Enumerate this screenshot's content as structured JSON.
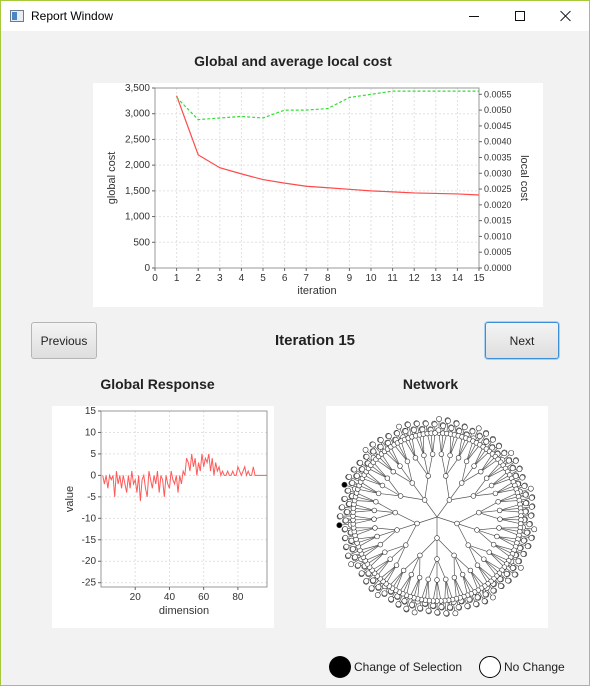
{
  "window": {
    "title": "Report Window",
    "controls": {
      "minimize": "minimize-icon",
      "maximize": "maximize-icon",
      "close": "close-icon"
    }
  },
  "cost_chart": {
    "heading": "Global and average local cost"
  },
  "navigation": {
    "previous_label": "Previous",
    "next_label": "Next",
    "iteration_label": "Iteration 15"
  },
  "response_chart": {
    "heading": "Global Response"
  },
  "network": {
    "heading": "Network",
    "filled_color": "#000000",
    "empty_color": "#ffffff"
  },
  "legend": {
    "change_label": "Change of Selection",
    "no_change_label": "No Change"
  },
  "chart_data": [
    {
      "type": "line",
      "title": "Global and average local cost",
      "xlabel": "iteration",
      "ylabel": "global cost",
      "y2label": "local cost",
      "xlim": [
        0,
        15
      ],
      "ylim": [
        0,
        3500
      ],
      "y2lim": [
        0,
        0.0057
      ],
      "x_ticks": [
        0,
        1,
        2,
        3,
        4,
        5,
        6,
        7,
        8,
        9,
        10,
        11,
        12,
        13,
        14,
        15
      ],
      "y_ticks": [
        "0",
        "500",
        "1,000",
        "1,500",
        "2,000",
        "2,500",
        "3,000",
        "3,500"
      ],
      "y2_ticks": [
        "0.0000",
        "0.0005",
        "0.0010",
        "0.0015",
        "0.0020",
        "0.0025",
        "0.0030",
        "0.0035",
        "0.0040",
        "0.0045",
        "0.0050",
        "0.0055"
      ],
      "grid": true,
      "series": [
        {
          "color": "#ff4a4a",
          "axis": "left",
          "dash": "solid",
          "x": [
            1,
            2,
            3,
            4,
            5,
            6,
            7,
            8,
            9,
            10,
            11,
            12,
            13,
            14,
            15
          ],
          "values": [
            3350,
            2200,
            1950,
            1830,
            1720,
            1650,
            1590,
            1560,
            1530,
            1500,
            1480,
            1460,
            1450,
            1440,
            1420
          ]
        },
        {
          "color": "#33dd33",
          "axis": "right",
          "dash": "dashed",
          "x": [
            1,
            2,
            3,
            4,
            5,
            6,
            7,
            8,
            9,
            10,
            11,
            12,
            13,
            14,
            15
          ],
          "values": [
            0.0054,
            0.0047,
            0.00475,
            0.0048,
            0.00475,
            0.005,
            0.005,
            0.00505,
            0.0054,
            0.0055,
            0.0056,
            0.0056,
            0.0056,
            0.0056,
            0.0056
          ]
        }
      ]
    },
    {
      "type": "line",
      "title": "Global Response",
      "xlabel": "dimension",
      "ylabel": "value",
      "xlim": [
        0,
        97
      ],
      "ylim": [
        -26,
        15
      ],
      "x_ticks": [
        "20",
        "40",
        "60",
        "80"
      ],
      "x_tick_values": [
        20,
        40,
        60,
        80
      ],
      "y_ticks": [
        "15",
        "10",
        "5",
        "0",
        "-5",
        "-10",
        "-15",
        "-20",
        "-25"
      ],
      "y_tick_values": [
        15,
        10,
        5,
        0,
        -5,
        -10,
        -15,
        -20,
        -25
      ],
      "grid": true,
      "series": [
        {
          "color": "#ff5a5a",
          "values": [
            0,
            -2,
            0,
            -3,
            0,
            -1,
            0,
            -5,
            1,
            -2,
            0,
            -3,
            0,
            -2,
            -4,
            0,
            -3,
            1,
            -2,
            -1,
            -4,
            0,
            -6,
            -1,
            0,
            -3,
            -5,
            1,
            -1,
            -3,
            0,
            -2,
            1,
            -4,
            0,
            -1,
            -5,
            0,
            -2,
            -3,
            1,
            -1,
            -2,
            0,
            -4,
            0,
            -2,
            1,
            0,
            4,
            3,
            1,
            5,
            2,
            4,
            0,
            3,
            1,
            5,
            2,
            4,
            3,
            5,
            1,
            4,
            0,
            3,
            1,
            2,
            0,
            1,
            0,
            0,
            1,
            0,
            0,
            1,
            0,
            0,
            2,
            1,
            0,
            1,
            2,
            0,
            1,
            0,
            0,
            2,
            0,
            0,
            0,
            0,
            0,
            0,
            0,
            0
          ]
        }
      ]
    }
  ]
}
